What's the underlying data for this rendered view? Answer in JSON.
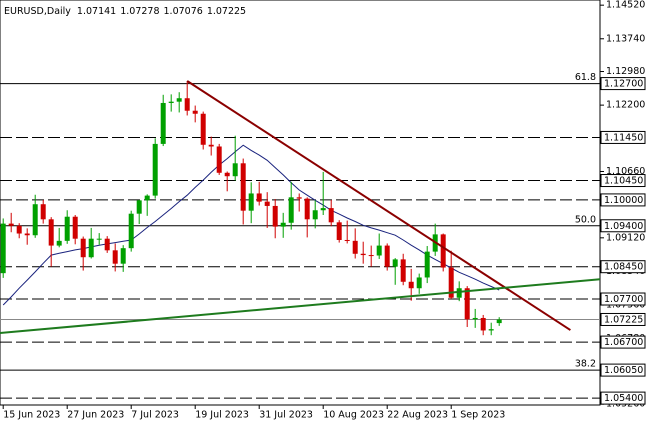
{
  "chart_data": {
    "type": "candlestick",
    "symbol": "EURUSD,Daily",
    "bull_color": "#00a000",
    "bear_color": "#d00000",
    "ma_color": "#1a237e",
    "categories": [
      "15 Jun 2023",
      null,
      null,
      null,
      null,
      null,
      null,
      null,
      "27 Jun 2023",
      null,
      null,
      null,
      null,
      null,
      null,
      null,
      "7 Jul 2023",
      null,
      null,
      null,
      null,
      null,
      null,
      null,
      "19 Jul 2023",
      null,
      null,
      null,
      null,
      null,
      null,
      null,
      "31 Jul 2023",
      null,
      null,
      null,
      null,
      null,
      null,
      null,
      "10 Aug 2023",
      null,
      null,
      null,
      null,
      null,
      null,
      null,
      "22 Aug 2023",
      null,
      null,
      null,
      null,
      null,
      null,
      null,
      "1 Sep 2023",
      null,
      null,
      null,
      null,
      null,
      null
    ],
    "open": [
      1.083,
      1.0945,
      1.094,
      1.0922,
      1.0918,
      1.099,
      1.0955,
      1.0894,
      1.0905,
      1.0961,
      1.091,
      1.0867,
      1.091,
      1.091,
      1.0883,
      1.0852,
      1.0888,
      1.0968,
      1.0999,
      1.101,
      1.113,
      1.1225,
      1.1228,
      1.1236,
      1.1207,
      1.12,
      1.1128,
      1.1124,
      1.1063,
      1.1055,
      1.1085,
      1.0975,
      1.1015,
      1.0996,
      1.0986,
      1.0938,
      1.0947,
      1.1006,
      1.1003,
      1.0955,
      1.0976,
      1.0981,
      1.0948,
      1.0907,
      1.0905,
      1.0875,
      1.0872,
      1.0871,
      1.0894,
      1.0845,
      1.0862,
      1.081,
      1.0795,
      1.082,
      1.088,
      1.092,
      1.0843,
      1.0773,
      1.0795,
      1.0723,
      1.0726,
      1.0697,
      1.07141
    ],
    "high": [
      1.0957,
      1.097,
      1.0946,
      1.0934,
      1.1012,
      1.1,
      1.096,
      1.0935,
      1.0976,
      1.0965,
      1.0915,
      1.0935,
      1.0923,
      1.0916,
      1.0899,
      1.0895,
      1.0975,
      1.1,
      1.1013,
      1.1143,
      1.1244,
      1.1245,
      1.125,
      1.1276,
      1.1219,
      1.1205,
      1.1147,
      1.113,
      1.1066,
      1.1149,
      1.1096,
      1.1041,
      1.1042,
      1.1018,
      1.1002,
      1.097,
      1.1042,
      1.1015,
      1.1006,
      1.0999,
      1.1065,
      1.1,
      1.0953,
      1.0952,
      1.0934,
      1.0903,
      1.0894,
      1.0922,
      1.0899,
      1.0865,
      1.0875,
      1.084,
      1.0829,
      1.0893,
      1.0945,
      1.0922,
      1.0882,
      1.0811,
      1.08,
      1.0747,
      1.0733,
      1.0715,
      1.07278
    ],
    "low": [
      1.0819,
      1.0925,
      1.0911,
      1.0896,
      1.0912,
      1.0945,
      1.0845,
      1.089,
      1.0898,
      1.0897,
      1.0836,
      1.0864,
      1.0896,
      1.0877,
      1.0834,
      1.0833,
      1.088,
      1.0944,
      1.0963,
      1.1003,
      1.1125,
      1.1205,
      1.1203,
      1.1196,
      1.118,
      1.1117,
      1.1103,
      1.1058,
      1.102,
      1.1045,
      1.0943,
      1.0946,
      1.0987,
      1.0935,
      1.0911,
      1.0912,
      1.0931,
      1.0973,
      1.0913,
      1.0934,
      1.0965,
      1.0939,
      1.0901,
      1.0899,
      1.0864,
      1.0852,
      1.0845,
      1.0863,
      1.0836,
      1.0803,
      1.0802,
      1.0766,
      1.0782,
      1.0807,
      1.087,
      1.0834,
      1.077,
      1.0765,
      1.0705,
      1.0703,
      1.0686,
      1.0686,
      1.07076
    ],
    "close": [
      1.0945,
      1.094,
      1.0922,
      1.0918,
      1.099,
      1.0955,
      1.0894,
      1.0905,
      1.0961,
      1.091,
      1.0867,
      1.091,
      1.091,
      1.0883,
      1.0852,
      1.0888,
      1.0968,
      1.0999,
      1.101,
      1.113,
      1.1225,
      1.1228,
      1.1236,
      1.1207,
      1.12,
      1.1128,
      1.1124,
      1.1063,
      1.1055,
      1.1085,
      1.0975,
      1.1015,
      1.0996,
      1.0986,
      1.0938,
      1.0947,
      1.1006,
      1.1003,
      1.0955,
      1.0976,
      1.0981,
      1.0948,
      1.0907,
      1.0905,
      1.0875,
      1.0872,
      1.0871,
      1.0894,
      1.0845,
      1.0862,
      1.081,
      1.0795,
      1.082,
      1.088,
      1.092,
      1.0843,
      1.0773,
      1.0795,
      1.0723,
      1.0726,
      1.0697,
      1.07,
      1.07225
    ],
    "ma": [
      1.0756,
      1.0775,
      1.0795,
      1.0814,
      1.0833,
      1.0853,
      1.0872,
      1.0876,
      1.088,
      1.0884,
      1.0887,
      1.0891,
      1.0895,
      1.0898,
      1.0901,
      1.0904,
      1.0907,
      1.0921,
      1.0936,
      1.095,
      1.0965,
      1.098,
      1.0996,
      1.1011,
      1.1029,
      1.1046,
      1.1064,
      1.1081,
      1.1096,
      1.1112,
      1.1127,
      1.1115,
      1.1104,
      1.1092,
      1.1075,
      1.1058,
      1.104,
      1.1023,
      1.1011,
      1.0999,
      1.0988,
      1.0976,
      1.0967,
      1.0958,
      1.095,
      1.0941,
      1.0935,
      1.093,
      1.0924,
      1.0918,
      1.0907,
      1.0895,
      1.0884,
      1.0872,
      1.0862,
      1.0852,
      1.0842,
      1.0832,
      1.0824,
      1.0816,
      1.0807,
      1.0799,
      1.0791
    ],
    "trendlines": [
      {
        "color": "#8b0000",
        "x": [
          23,
          70.9
        ],
        "y": [
          1.1276,
          1.0698
        ]
      },
      {
        "color": "#1e7b1e",
        "x": [
          -0.4,
          74.6
        ],
        "y": [
          1.0691,
          1.0816
        ]
      }
    ],
    "levels": [
      {
        "value": 1.127,
        "label": "1.12700",
        "fib": "61.8",
        "style": "solid"
      },
      {
        "value": 1.1145,
        "label": "1.11450",
        "style": "dashed"
      },
      {
        "value": 1.1045,
        "label": "1.10450",
        "style": "dashed"
      },
      {
        "value": 1.1,
        "label": "1.10000",
        "style": "dashed"
      },
      {
        "value": 1.094,
        "label": "1.09400",
        "fib": "50.0",
        "style": "solid"
      },
      {
        "value": 1.0845,
        "label": "1.08450",
        "style": "dashed"
      },
      {
        "value": 1.077,
        "label": "1.07700",
        "style": "dashed"
      },
      {
        "value": 1.07225,
        "label": "1.07225",
        "style": "current"
      },
      {
        "value": 1.067,
        "label": "1.06700",
        "style": "dashed"
      },
      {
        "value": 1.0605,
        "label": "1.06050",
        "fib": "38.2",
        "style": "solid"
      },
      {
        "value": 1.054,
        "label": "1.05400",
        "style": "dashed"
      }
    ],
    "ylim": [
      1.0524,
      1.1464
    ],
    "xlim": [
      -0.4,
      74.6
    ],
    "yticks": [
      {
        "value": 1.1452,
        "label": "1.14520"
      },
      {
        "value": 1.1374,
        "label": "1.13740"
      },
      {
        "value": 1.1298,
        "label": "1.12980"
      },
      {
        "value": 1.122,
        "label": "1.12200"
      },
      {
        "value": 1.1066,
        "label": "1.10660"
      },
      {
        "value": 1.0992,
        "label": "1.09920"
      },
      {
        "value": 1.0912,
        "label": "1.09120"
      },
      {
        "value": 1.0834,
        "label": "1.08340"
      },
      {
        "value": 1.0756,
        "label": "1.07560"
      },
      {
        "value": 1.0678,
        "label": "1.06780"
      },
      {
        "value": 1.0526,
        "label": "1.05260"
      }
    ]
  }
}
